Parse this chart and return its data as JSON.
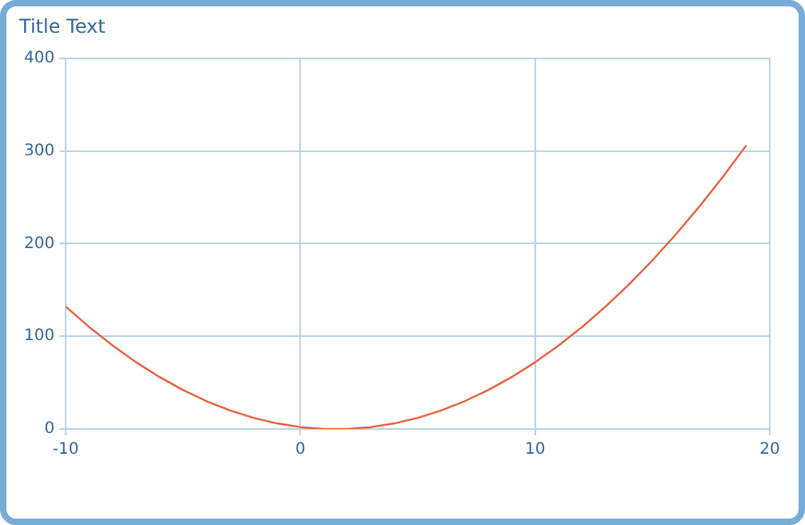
{
  "chart_data": {
    "type": "line",
    "title": "Title Text",
    "x": [
      -10,
      -9,
      -8,
      -7,
      -6,
      -5,
      -4,
      -3,
      -2,
      -1,
      0,
      1,
      2,
      3,
      4,
      5,
      6,
      7,
      8,
      9,
      10,
      11,
      12,
      13,
      14,
      15,
      16,
      17,
      18,
      19
    ],
    "series": [
      {
        "color": "#e8603c",
        "values": [
          132,
          110,
          90,
          72,
          56,
          42,
          30,
          20,
          12,
          6,
          2,
          0,
          0,
          2,
          6,
          12,
          20,
          30,
          42,
          56,
          72,
          90,
          110,
          132,
          156,
          182,
          210,
          240,
          272,
          306
        ]
      }
    ],
    "xlim": [
      -10,
      20
    ],
    "xticks": [
      -10,
      0,
      10,
      20
    ],
    "ylim": [
      0,
      400
    ],
    "yticks": [
      0,
      100,
      200,
      300,
      400
    ],
    "grid": true,
    "legend": false,
    "marker": "none",
    "line_style": "solid"
  }
}
